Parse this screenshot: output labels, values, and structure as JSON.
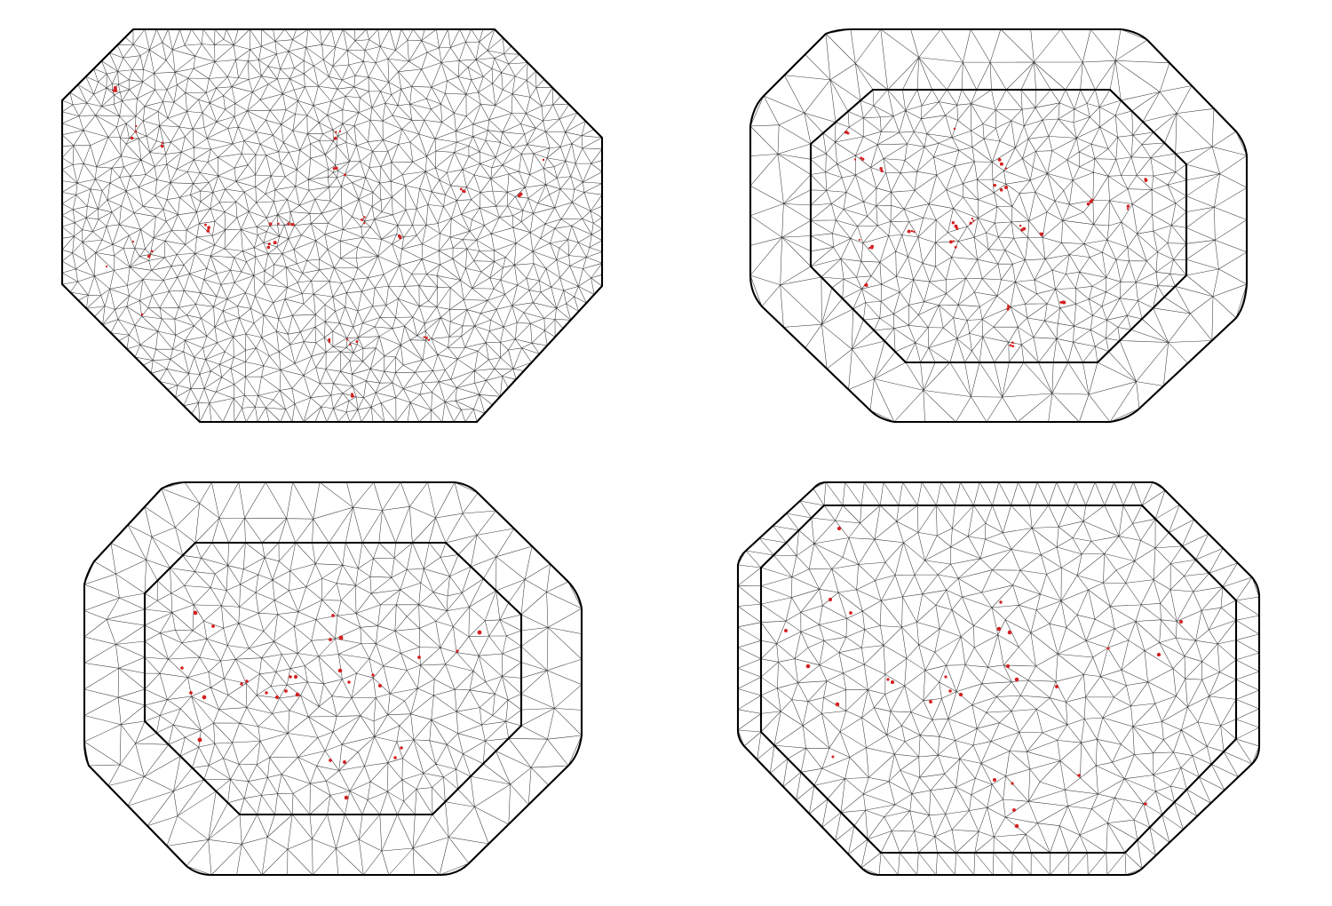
{
  "figure": {
    "panel_count": 4,
    "colors": {
      "background": "#ffffff",
      "mesh_edge": "#3a3a3a",
      "boundary": "#000000",
      "observation_point": "#d42020"
    },
    "panels": [
      {
        "id": "fine-mesh-single-boundary",
        "boundary_count": 1,
        "mesh_density": "very-fine"
      },
      {
        "id": "mesh-inner-outer-boundary-dense-clusters",
        "boundary_count": 2,
        "mesh_density": "fine-inner-coarse-outer"
      },
      {
        "id": "mesh-inner-outer-boundary-medium",
        "boundary_count": 2,
        "mesh_density": "medium"
      },
      {
        "id": "mesh-inner-outer-boundary-narrow-extension",
        "boundary_count": 2,
        "mesh_density": "medium-coarse"
      }
    ]
  }
}
